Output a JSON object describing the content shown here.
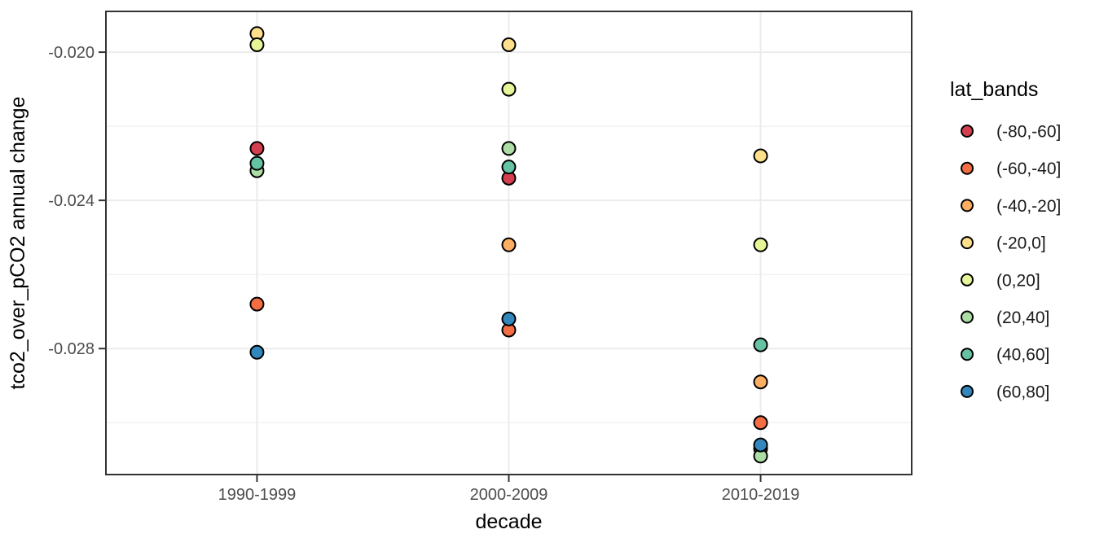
{
  "chart_data": {
    "type": "scatter",
    "title": "",
    "xlabel": "decade",
    "ylabel": "tco2_over_pCO2 annual change",
    "categories": [
      "1990-1999",
      "2000-2009",
      "2010-2019"
    ],
    "y_tick_labels": [
      "-0.020",
      "-0.024",
      "-0.028"
    ],
    "y_major_ticks": [
      -0.02,
      -0.024,
      -0.028
    ],
    "y_minor_ticks": [
      -0.022,
      -0.026,
      -0.03
    ],
    "ylim": [
      -0.0314,
      -0.0189
    ],
    "grid": "horizontal major+minor, vertical major at categories",
    "legend_position": "right",
    "legend_title": "lat_bands",
    "point_style": {
      "shape": "circle-filled-outlined",
      "stroke": "#000000",
      "radius_px": 8
    },
    "series": [
      {
        "name": "(-80,-60]",
        "color": "#D53E4F",
        "values": [
          -0.0226,
          -0.0234,
          -0.0307
        ]
      },
      {
        "name": "(-60,-40]",
        "color": "#F46D43",
        "values": [
          -0.0268,
          -0.0275,
          -0.03
        ]
      },
      {
        "name": "(-40,-20]",
        "color": "#FDAE61",
        "values": [
          null,
          -0.0252,
          -0.0289
        ]
      },
      {
        "name": "(-20,0]",
        "color": "#FEE08B",
        "values": [
          -0.0195,
          -0.0198,
          -0.0228
        ]
      },
      {
        "name": "(0,20]",
        "color": "#E6F598",
        "values": [
          -0.0198,
          -0.021,
          -0.0252
        ]
      },
      {
        "name": "(20,40]",
        "color": "#ABDDA4",
        "values": [
          -0.0232,
          -0.0226,
          -0.0309
        ]
      },
      {
        "name": "(40,60]",
        "color": "#66C2A5",
        "values": [
          -0.023,
          -0.0231,
          -0.0279
        ]
      },
      {
        "name": "(60,80]",
        "color": "#3288BD",
        "values": [
          -0.0281,
          -0.0272,
          -0.0306
        ]
      }
    ]
  },
  "style_colors": {
    "panel_border": "#333333",
    "gridline": "#EBEBEB",
    "tick_mark": "#333333",
    "tick_label_text": "#4D4D4D",
    "axis_title_text": "#000000",
    "legend_text": "#1A1A1A",
    "background": "#FFFFFF"
  }
}
